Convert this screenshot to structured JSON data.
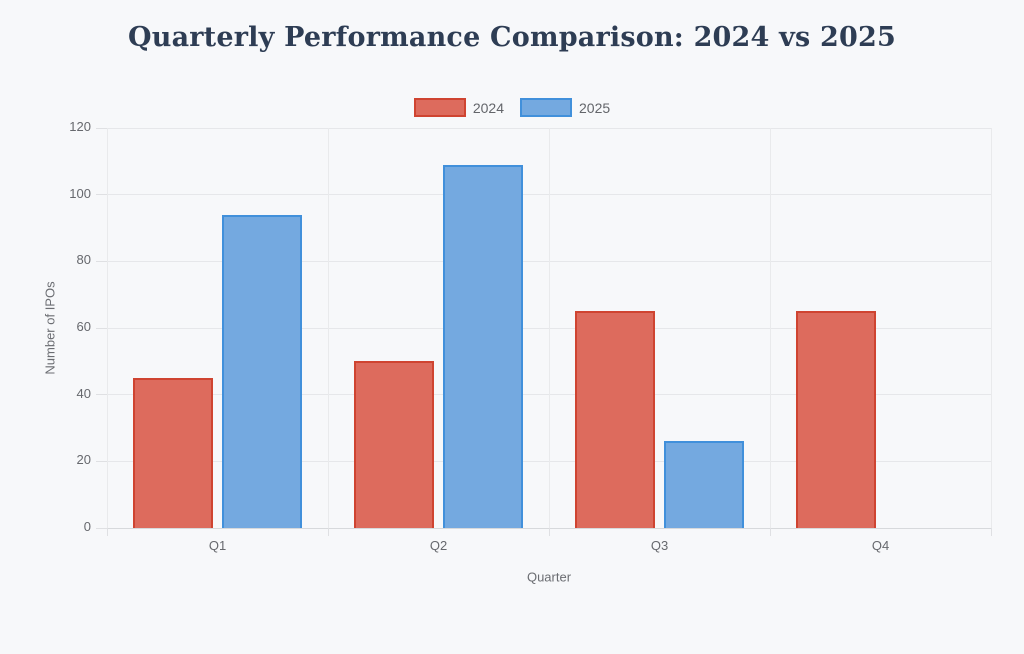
{
  "chart_data": {
    "type": "bar",
    "title": "Quarterly Performance Comparison: 2024 vs 2025",
    "categories": [
      "Q1",
      "Q2",
      "Q3",
      "Q4"
    ],
    "series": [
      {
        "name": "2024",
        "values": [
          45,
          50,
          65,
          65
        ],
        "fill": "#dd6b5d",
        "border": "#cf4431"
      },
      {
        "name": "2025",
        "values": [
          94,
          109,
          26,
          null
        ],
        "fill": "#74a9e0",
        "border": "#4190db"
      }
    ],
    "xlabel": "Quarter",
    "ylabel": "Number of IPOs",
    "ylim": [
      0,
      120
    ],
    "yticks": [
      0,
      20,
      40,
      60,
      80,
      100,
      120
    ],
    "grid": true,
    "legend_position": "top",
    "colors": {
      "background": "#f7f8fa",
      "title_text": "#2e3d54",
      "tick_text": "#66686d",
      "gridline": "#e6e7ea",
      "axis_line": "#d7d9dc"
    }
  }
}
